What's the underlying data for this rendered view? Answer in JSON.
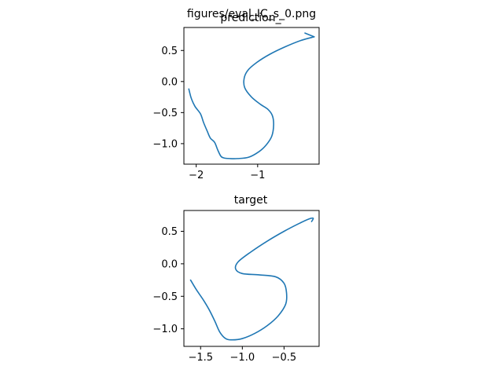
{
  "figure": {
    "suptitle": "figures/eval_IC_s_0.png"
  },
  "style": {
    "line_color": "#1f77b4",
    "axes_color": "#000000",
    "background": "#ffffff"
  },
  "chart_data": [
    {
      "type": "line",
      "title": "prediction_",
      "xlabel": "",
      "ylabel": "",
      "xlim": [
        -2.2,
        -0.0
      ],
      "ylim": [
        -1.33,
        0.87
      ],
      "xticks": [
        -2,
        -1
      ],
      "xtick_labels": [
        "−2",
        "−1"
      ],
      "yticks": [
        0.5,
        0.0,
        -0.5,
        -1.0
      ],
      "ytick_labels": [
        "0.5",
        "0.0",
        "−0.5",
        "−1.0"
      ],
      "grid": false,
      "legend": "none",
      "series": [
        {
          "x": [
            -2.12,
            -2.08,
            -2.02,
            -1.93,
            -1.88,
            -1.82,
            -1.77,
            -1.7,
            -1.65,
            -1.6,
            -1.55,
            -1.45,
            -1.33,
            -1.15,
            -0.98,
            -0.86,
            -0.77,
            -0.74,
            -0.76,
            -0.83,
            -0.95,
            -1.1,
            -1.21,
            -1.22,
            -1.16,
            -1.01,
            -0.8,
            -0.55,
            -0.3,
            -0.08
          ],
          "y": [
            -0.12,
            -0.27,
            -0.4,
            -0.52,
            -0.66,
            -0.8,
            -0.91,
            -0.98,
            -1.1,
            -1.2,
            -1.23,
            -1.24,
            -1.24,
            -1.22,
            -1.13,
            -1.02,
            -0.88,
            -0.7,
            -0.55,
            -0.45,
            -0.37,
            -0.25,
            -0.1,
            0.05,
            0.18,
            0.31,
            0.44,
            0.56,
            0.66,
            0.72
          ],
          "arrow_end_x": [
            -0.08,
            -0.23
          ],
          "arrow_end_y": [
            0.72,
            0.78
          ]
        }
      ]
    },
    {
      "type": "line",
      "title": "target",
      "xlabel": "",
      "ylabel": "",
      "xlim": [
        -1.7,
        -0.08
      ],
      "ylim": [
        -1.27,
        0.82
      ],
      "xticks": [
        -1.5,
        -1.0,
        -0.5
      ],
      "xtick_labels": [
        "−1.5",
        "−1.0",
        "−0.5"
      ],
      "yticks": [
        0.5,
        0.0,
        -0.5,
        -1.0
      ],
      "ytick_labels": [
        "0.5",
        "0.0",
        "−0.5",
        "−1.0"
      ],
      "grid": false,
      "legend": "none",
      "series": [
        {
          "x": [
            -1.62,
            -1.55,
            -1.47,
            -1.4,
            -1.33,
            -1.27,
            -1.2,
            -1.12,
            -1.0,
            -0.85,
            -0.7,
            -0.57,
            -0.48,
            -0.47,
            -0.5,
            -0.6,
            -0.8,
            -1.0,
            -1.08,
            -1.05,
            -0.9,
            -0.7,
            -0.5,
            -0.32,
            -0.2,
            -0.15,
            -0.17
          ],
          "y": [
            -0.25,
            -0.4,
            -0.55,
            -0.7,
            -0.88,
            -1.05,
            -1.15,
            -1.17,
            -1.15,
            -1.07,
            -0.95,
            -0.8,
            -0.62,
            -0.45,
            -0.3,
            -0.2,
            -0.17,
            -0.15,
            -0.08,
            0.03,
            0.18,
            0.35,
            0.5,
            0.62,
            0.69,
            0.7,
            0.65
          ]
        }
      ]
    }
  ]
}
